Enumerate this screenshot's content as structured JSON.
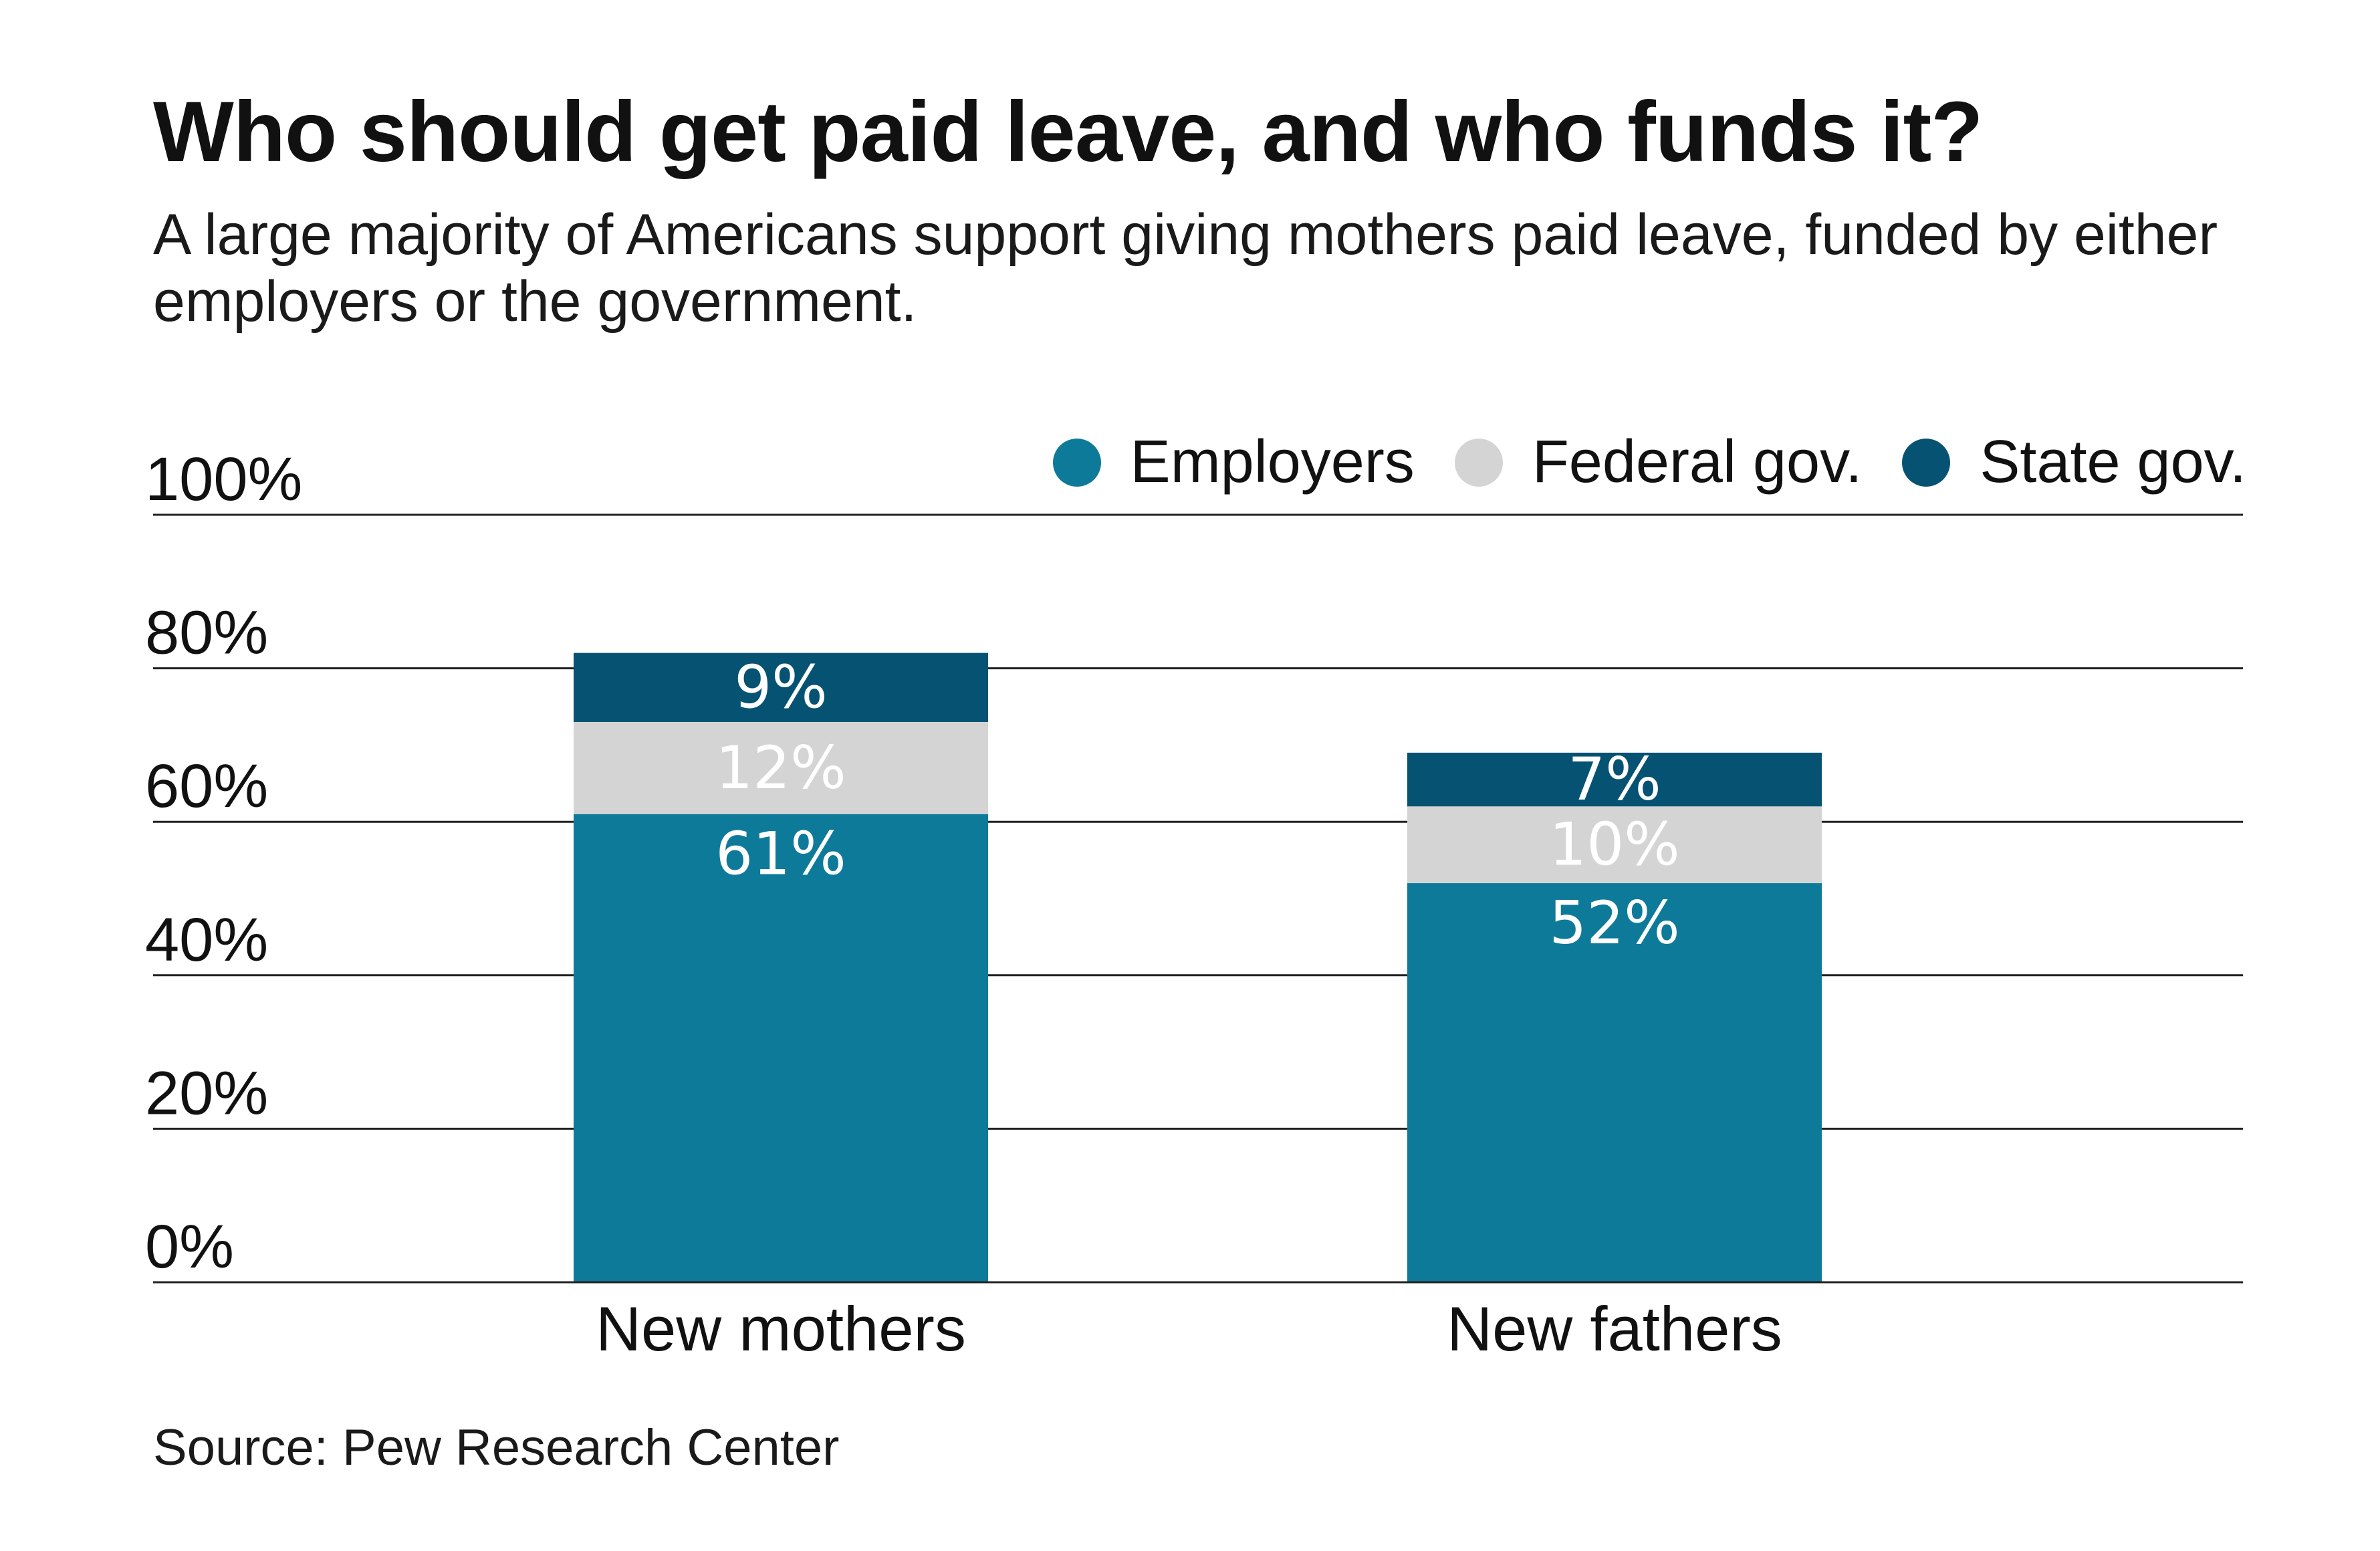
{
  "header": {
    "title": "Who should get paid leave, and who funds it?",
    "subtitle": "A large majority of Americans support giving mothers paid leave, funded by either employers or the government."
  },
  "footer": {
    "source": "Source: Pew Research Center"
  },
  "chart_data": {
    "type": "bar",
    "stacked": true,
    "categories": [
      "New mothers",
      "New fathers"
    ],
    "series": [
      {
        "name": "Employers",
        "values": [
          61,
          52
        ],
        "color": "#0e7a99",
        "label_color": "#ffffff"
      },
      {
        "name": "Federal gov.",
        "values": [
          12,
          10
        ],
        "color": "#d5d4d5",
        "label_color": "#ffffff"
      },
      {
        "name": "State gov.",
        "values": [
          9,
          7
        ],
        "color": "#065272",
        "label_color": "#ffffff"
      }
    ],
    "value_suffix": "%",
    "ylim": [
      0,
      100
    ],
    "yticks": [
      0,
      20,
      40,
      60,
      80,
      100
    ],
    "ytick_labels": [
      "0%",
      "20%",
      "40%",
      "60%",
      "80%",
      "100%"
    ],
    "grid": true,
    "legend_position": "top-right"
  }
}
